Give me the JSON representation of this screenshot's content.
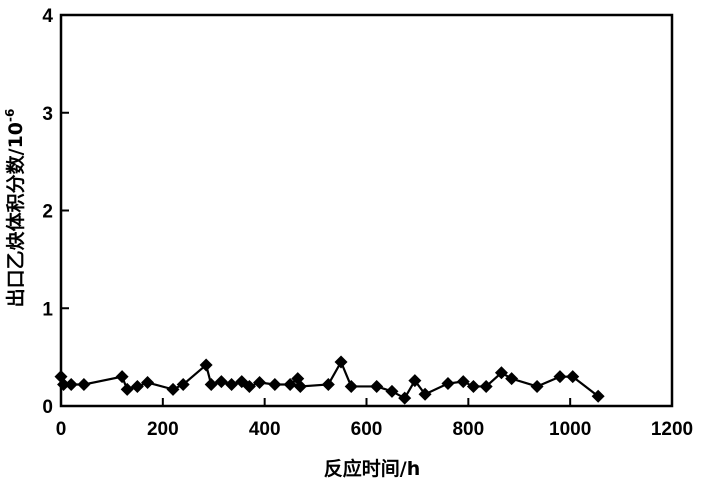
{
  "chart_data": {
    "type": "line",
    "xlabel": "反应时间/h",
    "ylabel": "出口乙炔体积分数/10",
    "ylabel_exponent": "-6",
    "xlim": [
      0,
      1200
    ],
    "ylim": [
      0,
      4
    ],
    "xticks": [
      0,
      200,
      400,
      600,
      800,
      1000,
      1200
    ],
    "yticks": [
      0,
      1,
      2,
      3,
      4
    ],
    "grid": false,
    "series": [
      {
        "marker": "diamond",
        "color": "#000000",
        "x": [
          0,
          5,
          20,
          45,
          120,
          130,
          150,
          170,
          220,
          240,
          285,
          295,
          315,
          335,
          355,
          370,
          390,
          420,
          450,
          465,
          470,
          525,
          550,
          570,
          620,
          650,
          675,
          695,
          715,
          760,
          790,
          810,
          835,
          865,
          885,
          935,
          980,
          1005,
          1055
        ],
        "y": [
          0.3,
          0.22,
          0.22,
          0.22,
          0.3,
          0.17,
          0.2,
          0.24,
          0.17,
          0.22,
          0.42,
          0.22,
          0.25,
          0.22,
          0.25,
          0.2,
          0.24,
          0.22,
          0.22,
          0.28,
          0.2,
          0.22,
          0.45,
          0.2,
          0.2,
          0.15,
          0.08,
          0.26,
          0.12,
          0.23,
          0.25,
          0.2,
          0.2,
          0.34,
          0.28,
          0.2,
          0.3,
          0.3,
          0.1
        ]
      }
    ]
  }
}
